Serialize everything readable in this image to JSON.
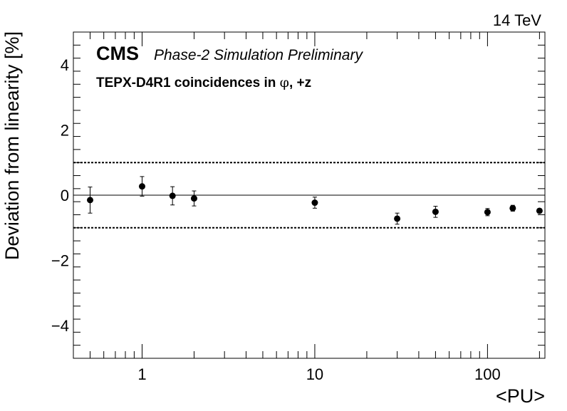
{
  "chart_data": {
    "type": "scatter",
    "energy_label": "14 TeV",
    "experiment": "CMS",
    "subtitle": "Phase-2 Simulation Preliminary",
    "plot_label": {
      "prefix": "TEPX-D4R1 coincidences in ",
      "symbol": "φ",
      "suffix": ", +z"
    },
    "xlabel": "<PU>",
    "ylabel": "Deviation from linearity [%]",
    "x_scale": "log",
    "xlim": [
      0.4,
      215
    ],
    "ylim": [
      -5,
      5
    ],
    "x_ticks": [
      {
        "value": 1,
        "label": "1"
      },
      {
        "value": 10,
        "label": "10"
      },
      {
        "value": 100,
        "label": "100"
      }
    ],
    "y_ticks": [
      {
        "value": -4,
        "label": "−4"
      },
      {
        "value": -2,
        "label": "−2"
      },
      {
        "value": 0,
        "label": "0"
      },
      {
        "value": 2,
        "label": "2"
      },
      {
        "value": 4,
        "label": "4"
      }
    ],
    "reference_lines": [
      {
        "y": 0,
        "style": "solid"
      },
      {
        "y": 1,
        "style": "dotted"
      },
      {
        "y": -1,
        "style": "dotted"
      }
    ],
    "grid": false,
    "points": [
      {
        "x": 0.5,
        "y": -0.15,
        "err": 0.4
      },
      {
        "x": 1,
        "y": 0.27,
        "err": 0.3
      },
      {
        "x": 1.5,
        "y": -0.02,
        "err": 0.28
      },
      {
        "x": 2,
        "y": -0.1,
        "err": 0.23
      },
      {
        "x": 10,
        "y": -0.23,
        "err": 0.17
      },
      {
        "x": 30,
        "y": -0.72,
        "err": 0.17
      },
      {
        "x": 50,
        "y": -0.51,
        "err": 0.17
      },
      {
        "x": 100,
        "y": -0.52,
        "err": 0.11
      },
      {
        "x": 140,
        "y": -0.4,
        "err": 0.09
      },
      {
        "x": 200,
        "y": -0.48,
        "err": 0.04
      }
    ]
  }
}
